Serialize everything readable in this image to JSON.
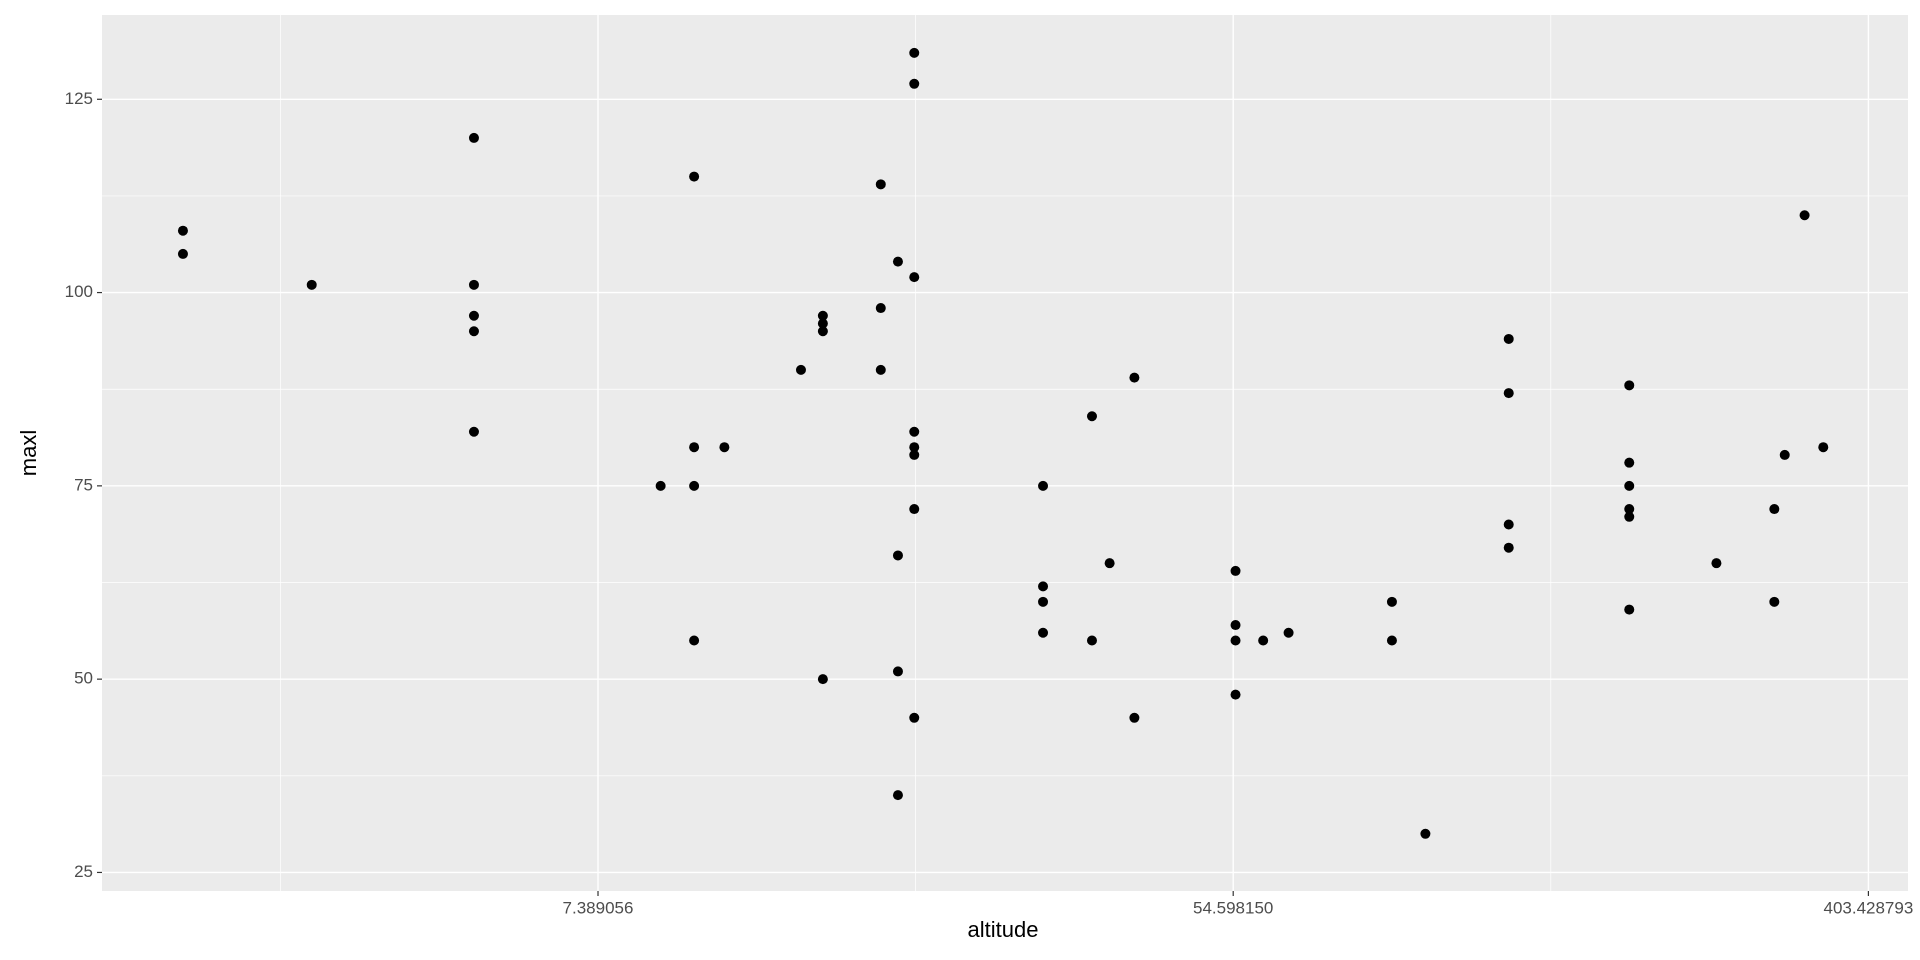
{
  "chart_data": {
    "type": "scatter",
    "x_label": "altitude",
    "y_label": "maxl",
    "x": [
      2,
      2,
      3,
      5,
      5,
      5,
      5,
      5,
      9,
      10,
      10,
      10,
      10,
      11,
      14,
      15,
      15,
      15,
      15,
      18,
      18,
      18,
      19,
      19,
      19,
      19,
      20,
      20,
      20,
      20,
      20,
      20,
      20,
      20,
      30,
      30,
      30,
      30,
      35,
      35,
      37,
      40,
      40,
      55,
      55,
      55,
      55,
      60,
      65,
      90,
      90,
      100,
      130,
      130,
      130,
      130,
      190,
      190,
      190,
      190,
      190,
      190,
      250,
      300,
      300,
      310,
      330,
      350
    ],
    "values": [
      108,
      105,
      101,
      120,
      101,
      97,
      95,
      82,
      75,
      115,
      80,
      75,
      55,
      80,
      90,
      97,
      96,
      95,
      50,
      114,
      98,
      90,
      104,
      66,
      51,
      35,
      131,
      127,
      102,
      82,
      80,
      79,
      72,
      45,
      75,
      62,
      60,
      56,
      84,
      55,
      65,
      89,
      45,
      64,
      57,
      55,
      48,
      55,
      56,
      60,
      55,
      30,
      94,
      87,
      70,
      67,
      88,
      78,
      75,
      72,
      71,
      59,
      65,
      72,
      60,
      79,
      110,
      80
    ],
    "color": "#000000",
    "xlim": [
      1.55,
      457
    ],
    "ylim": [
      22.6,
      135.9
    ],
    "x_log": true,
    "xticks": [
      {
        "value": 7.389056,
        "label": "7.389056"
      },
      {
        "value": 54.59815,
        "label": "54.598150"
      },
      {
        "value": 403.428793,
        "label": "403.428793"
      }
    ],
    "yticks": [
      25,
      50,
      75,
      100,
      125
    ],
    "grid": true
  }
}
